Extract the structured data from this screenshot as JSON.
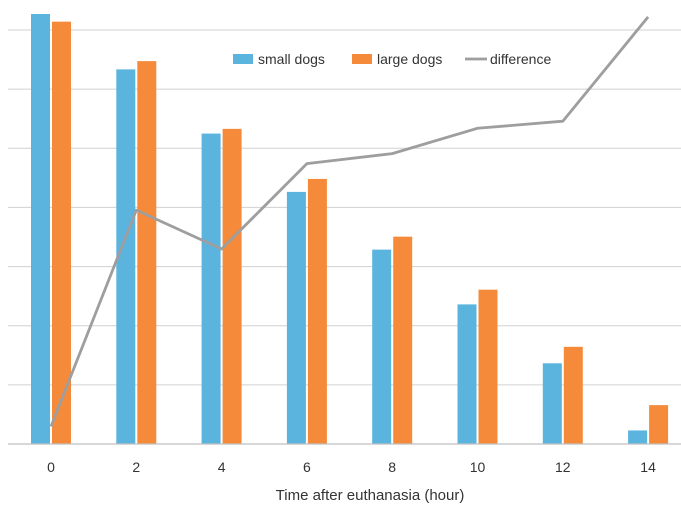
{
  "chart_data": {
    "type": "bar",
    "title": "",
    "xlabel": "Time after euthanasia (hour)",
    "ylabel": "",
    "categories": [
      "0",
      "2",
      "4",
      "6",
      "8",
      "10",
      "12",
      "14"
    ],
    "ylim": [
      0,
      7.3
    ],
    "y_tick_labels_visible": false,
    "grid": true,
    "legend_placement": "top-center",
    "series": [
      {
        "name": "small dogs",
        "type": "bar",
        "color": "#5ab4de",
        "values": [
          7.3,
          6.36,
          5.27,
          4.28,
          3.3,
          2.37,
          1.37,
          0.23
        ]
      },
      {
        "name": "large dogs",
        "type": "bar",
        "color": "#f58b3a",
        "values": [
          7.17,
          6.5,
          5.35,
          4.5,
          3.52,
          2.62,
          1.65,
          0.66
        ]
      },
      {
        "name": "difference",
        "type": "line",
        "color": "#9e9e9e",
        "values": [
          0.3,
          3.97,
          3.31,
          4.76,
          4.93,
          5.36,
          5.48,
          7.25
        ]
      }
    ]
  }
}
